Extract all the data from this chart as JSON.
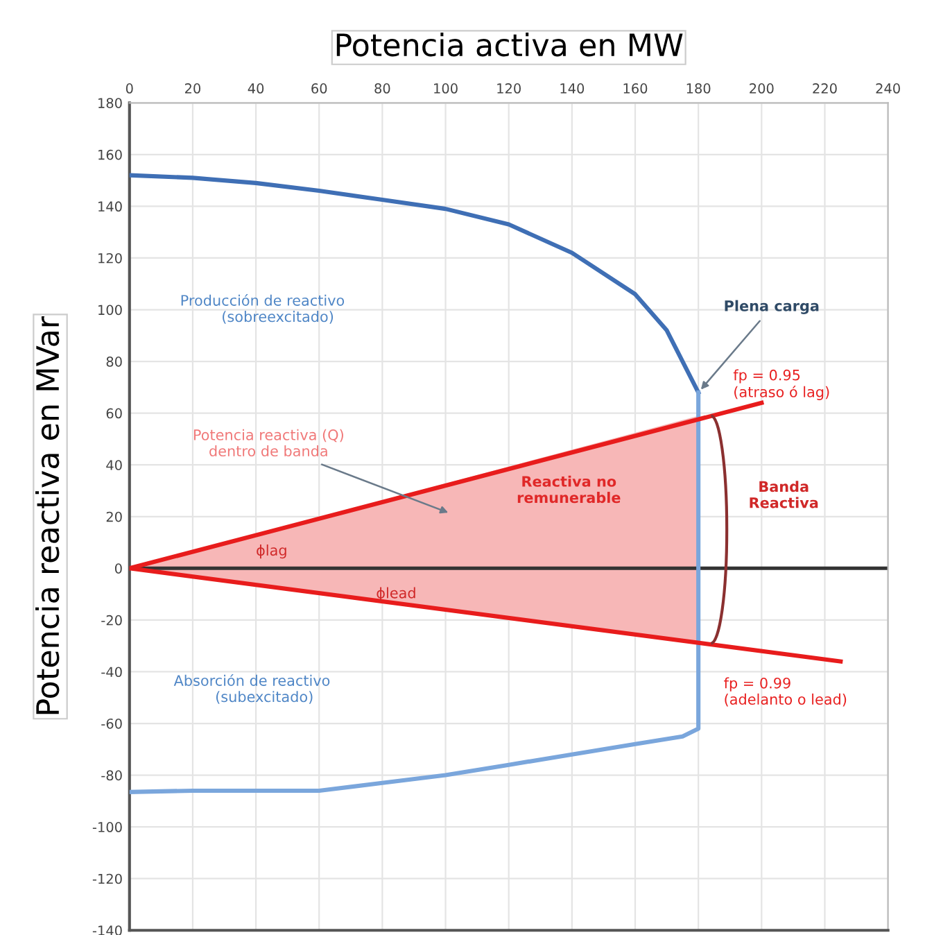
{
  "chart_data": {
    "type": "line",
    "xlabel": "Potencia activa en MW",
    "ylabel": "Potencia reactiva en MVar",
    "xlim": [
      0,
      240
    ],
    "xticks": [
      0,
      20,
      40,
      60,
      80,
      100,
      120,
      140,
      160,
      180,
      200,
      220,
      240
    ],
    "ylim": [
      -140,
      180
    ],
    "yticks": [
      -140,
      -120,
      -100,
      -80,
      -60,
      -40,
      -20,
      0,
      20,
      40,
      60,
      80,
      100,
      120,
      140,
      160,
      180
    ],
    "grid": true,
    "legend": false,
    "series": [
      {
        "type": "area",
        "color": "#f7b7b7",
        "x": [
          0,
          180,
          180
        ],
        "values": [
          0,
          59,
          -29
        ]
      },
      {
        "color": "#3f6fb5",
        "x": [
          0,
          20,
          40,
          60,
          80,
          100,
          120,
          140,
          160,
          170,
          175,
          180
        ],
        "values": [
          152,
          151,
          149,
          146,
          142.5,
          139,
          133,
          122,
          106,
          92,
          80,
          68
        ]
      },
      {
        "color": "#7aa6dc",
        "x": [
          180,
          180,
          175,
          160,
          140,
          120,
          100,
          80,
          60,
          40,
          20,
          0
        ],
        "values": [
          68,
          -62,
          -65,
          -68,
          -72,
          -76,
          -80,
          -83,
          -86,
          -86,
          -86,
          -86.5
        ]
      },
      {
        "color": "#e81c1c",
        "x": [
          0,
          200
        ],
        "values": [
          0,
          64
        ]
      },
      {
        "color": "#e81c1c",
        "x": [
          0,
          225
        ],
        "values": [
          0,
          -36
        ]
      }
    ],
    "ref_lines": [
      {
        "axis": "y",
        "value": 0,
        "color": "#333333"
      }
    ],
    "annotations": [
      "Producción de reactivo\n         (sobreexcitado)",
      "Potencia reactiva (Q)\ndentro de banda",
      {
        "text": "Plena carga",
        "x": 180,
        "y": 68
      },
      {
        "text": "fp = 0.95\n(atraso ó lag)",
        "x": 200,
        "y": 64
      },
      "Reactiva no\nremunerable",
      "Banda\nReactiva",
      "ϕlag",
      "ϕlead",
      "Absorción de reactivo\n         (subexcitado)",
      "fp = 0.99\n(adelanto o lead)"
    ]
  }
}
